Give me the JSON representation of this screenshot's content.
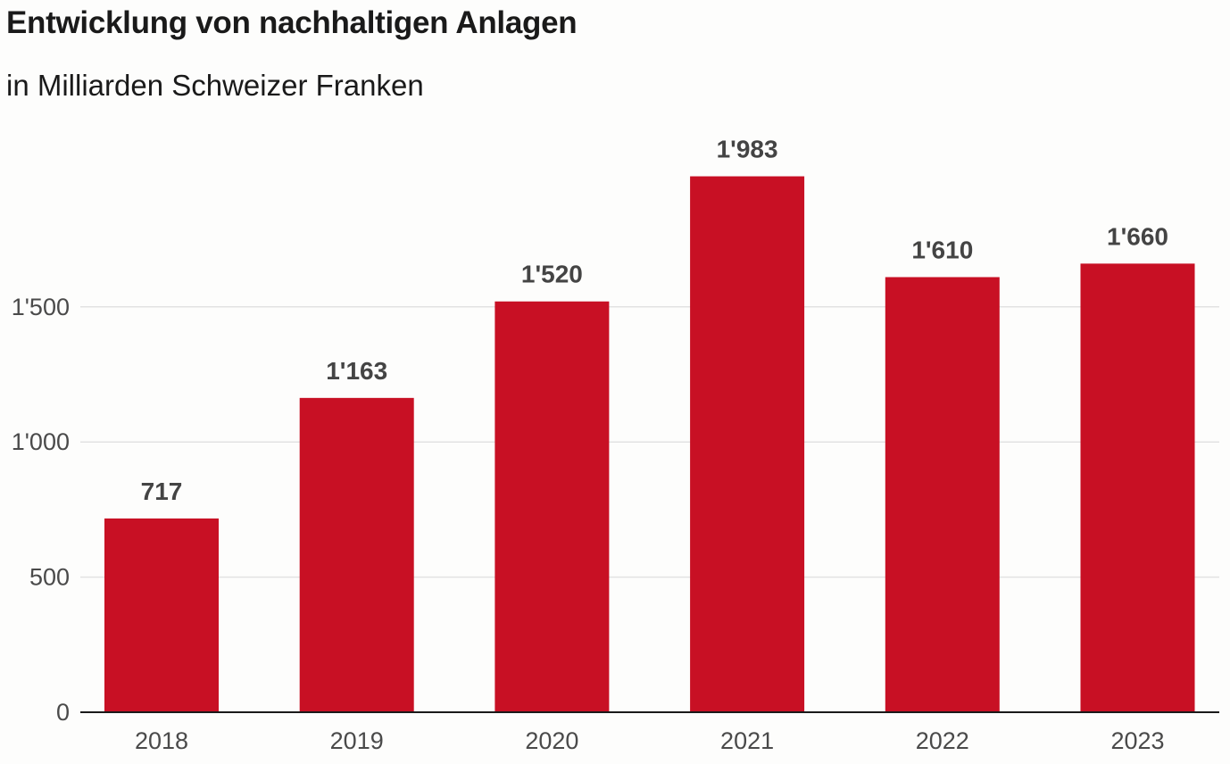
{
  "title": "Entwicklung von nachhaltigen Anlagen",
  "subtitle": "in Milliarden Schweizer Franken",
  "colors": {
    "bar": "#c81024",
    "grid": "#e2e2e2",
    "axis": "#1a1a1a"
  },
  "chart_data": {
    "type": "bar",
    "title": "Entwicklung von nachhaltigen Anlagen",
    "subtitle": "in Milliarden Schweizer Franken",
    "categories": [
      "2018",
      "2019",
      "2020",
      "2021",
      "2022",
      "2023"
    ],
    "values": [
      717,
      1163,
      1520,
      1983,
      1610,
      1660
    ],
    "value_labels": [
      "717",
      "1'163",
      "1'520",
      "1'983",
      "1'610",
      "1'660"
    ],
    "y_ticks": [
      0,
      500,
      1000,
      1500
    ],
    "y_tick_labels": [
      "0",
      "500",
      "1'000",
      "1'500"
    ],
    "ylim": [
      0,
      2000
    ],
    "xlabel": "",
    "ylabel": "",
    "grid": true,
    "legend": "none"
  }
}
